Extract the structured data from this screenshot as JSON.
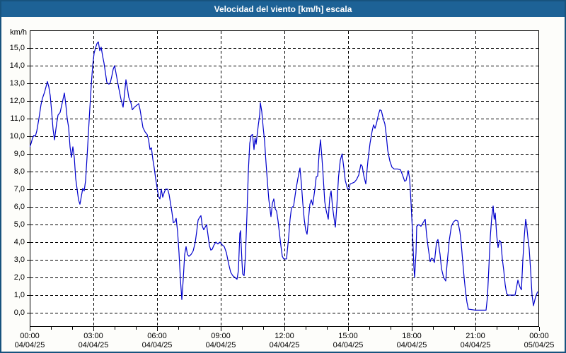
{
  "window": {
    "title": "Velocidad del viento [km/h] escala",
    "colors": {
      "titlebar_bg": "#1D6296",
      "titlebar_text": "#FFFFFF",
      "window_border": "#17537E",
      "window_bg": "#FDFDFA",
      "plot_bg": "#FFFFFF",
      "grid": "#000000",
      "axis": "#000000",
      "line": "#0000CC"
    }
  },
  "chart_data": {
    "type": "line",
    "title": "Velocidad del viento [km/h] escala",
    "ylabel": "km/h",
    "xlabel": "",
    "ylim": [
      0,
      15
    ],
    "xlim_hours": [
      0,
      24
    ],
    "grid": "dashed black, horizontal every 1 km/h, vertical every 3 h",
    "legend": "none",
    "y_tick_labels": [
      "0,0",
      "1,0",
      "2,0",
      "3,0",
      "4,0",
      "5,0",
      "6,0",
      "7,0",
      "8,0",
      "9,0",
      "10,0",
      "11,0",
      "12,0",
      "13,0",
      "14,0",
      "15,0"
    ],
    "x_ticks": [
      {
        "hour": 0,
        "time": "00:00",
        "date": "04/04/25"
      },
      {
        "hour": 3,
        "time": "03:00",
        "date": "04/04/25"
      },
      {
        "hour": 6,
        "time": "06:00",
        "date": "04/04/25"
      },
      {
        "hour": 9,
        "time": "09:00",
        "date": "04/04/25"
      },
      {
        "hour": 12,
        "time": "12:00",
        "date": "04/04/25"
      },
      {
        "hour": 15,
        "time": "15:00",
        "date": "04/04/25"
      },
      {
        "hour": 18,
        "time": "18:00",
        "date": "04/04/25"
      },
      {
        "hour": 21,
        "time": "21:00",
        "date": "04/04/25"
      },
      {
        "hour": 24,
        "time": "00:00",
        "date": "05/04/25"
      }
    ],
    "minor_x_tick_every_hours": 1,
    "series": [
      {
        "name": "Velocidad del viento",
        "unit": "km/h",
        "color": "#0000CC",
        "points_time_min_value_kmh": [
          [
            0,
            9.4
          ],
          [
            4,
            9.6
          ],
          [
            8,
            9.9
          ],
          [
            12,
            10.05
          ],
          [
            16,
            10.0
          ],
          [
            20,
            10.3
          ],
          [
            26,
            11.0
          ],
          [
            32,
            11.8
          ],
          [
            36,
            12.15
          ],
          [
            42,
            12.5
          ],
          [
            46,
            12.8
          ],
          [
            50,
            13.1
          ],
          [
            54,
            12.8
          ],
          [
            58,
            12.3
          ],
          [
            62,
            11.4
          ],
          [
            66,
            10.4
          ],
          [
            70,
            9.8
          ],
          [
            76,
            10.7
          ],
          [
            80,
            11.2
          ],
          [
            86,
            11.35
          ],
          [
            92,
            11.9
          ],
          [
            98,
            12.45
          ],
          [
            102,
            11.8
          ],
          [
            106,
            11.0
          ],
          [
            110,
            10.5
          ],
          [
            114,
            9.4
          ],
          [
            118,
            8.8
          ],
          [
            122,
            9.4
          ],
          [
            126,
            8.8
          ],
          [
            130,
            7.6
          ],
          [
            134,
            7.0
          ],
          [
            138,
            6.4
          ],
          [
            142,
            6.15
          ],
          [
            146,
            6.6
          ],
          [
            150,
            7.05
          ],
          [
            154,
            6.9
          ],
          [
            158,
            7.5
          ],
          [
            162,
            8.8
          ],
          [
            166,
            10.2
          ],
          [
            170,
            11.6
          ],
          [
            174,
            12.9
          ],
          [
            178,
            14.0
          ],
          [
            182,
            14.7
          ],
          [
            186,
            15.0
          ],
          [
            190,
            15.25
          ],
          [
            194,
            15.35
          ],
          [
            198,
            14.85
          ],
          [
            202,
            15.05
          ],
          [
            206,
            14.55
          ],
          [
            210,
            14.15
          ],
          [
            214,
            13.6
          ],
          [
            218,
            13.05
          ],
          [
            224,
            12.95
          ],
          [
            228,
            13.05
          ],
          [
            232,
            13.4
          ],
          [
            236,
            13.8
          ],
          [
            240,
            14.0
          ],
          [
            246,
            13.35
          ],
          [
            252,
            12.7
          ],
          [
            258,
            12.1
          ],
          [
            264,
            11.65
          ],
          [
            268,
            12.4
          ],
          [
            272,
            13.2
          ],
          [
            276,
            12.75
          ],
          [
            280,
            12.2
          ],
          [
            286,
            11.9
          ],
          [
            290,
            11.5
          ],
          [
            296,
            11.65
          ],
          [
            302,
            11.75
          ],
          [
            308,
            11.85
          ],
          [
            312,
            11.5
          ],
          [
            316,
            11.0
          ],
          [
            320,
            10.5
          ],
          [
            326,
            10.25
          ],
          [
            332,
            10.1
          ],
          [
            336,
            9.8
          ],
          [
            340,
            9.25
          ],
          [
            344,
            9.35
          ],
          [
            348,
            8.7
          ],
          [
            352,
            8.2
          ],
          [
            356,
            7.6
          ],
          [
            360,
            7.1
          ],
          [
            364,
            6.6
          ],
          [
            368,
            6.45
          ],
          [
            372,
            7.0
          ],
          [
            376,
            6.55
          ],
          [
            380,
            6.8
          ],
          [
            384,
            7.0
          ],
          [
            390,
            7.0
          ],
          [
            394,
            6.7
          ],
          [
            398,
            6.2
          ],
          [
            402,
            5.7
          ],
          [
            406,
            5.1
          ],
          [
            410,
            5.15
          ],
          [
            414,
            5.35
          ],
          [
            418,
            4.6
          ],
          [
            422,
            3.4
          ],
          [
            426,
            1.9
          ],
          [
            430,
            0.75
          ],
          [
            434,
            1.9
          ],
          [
            438,
            3.3
          ],
          [
            442,
            3.75
          ],
          [
            446,
            3.3
          ],
          [
            450,
            3.2
          ],
          [
            456,
            3.3
          ],
          [
            462,
            3.5
          ],
          [
            468,
            4.0
          ],
          [
            472,
            4.6
          ],
          [
            476,
            5.25
          ],
          [
            480,
            5.4
          ],
          [
            484,
            5.5
          ],
          [
            488,
            4.9
          ],
          [
            492,
            4.7
          ],
          [
            496,
            4.85
          ],
          [
            500,
            5.0
          ],
          [
            504,
            4.4
          ],
          [
            508,
            3.8
          ],
          [
            512,
            3.55
          ],
          [
            516,
            3.6
          ],
          [
            520,
            3.8
          ],
          [
            526,
            4.0
          ],
          [
            532,
            3.9
          ],
          [
            538,
            4.0
          ],
          [
            544,
            3.85
          ],
          [
            550,
            3.75
          ],
          [
            556,
            3.4
          ],
          [
            562,
            2.8
          ],
          [
            568,
            2.3
          ],
          [
            574,
            2.1
          ],
          [
            580,
            2.0
          ],
          [
            586,
            1.9
          ],
          [
            590,
            2.4
          ],
          [
            594,
            4.5
          ],
          [
            596,
            4.65
          ],
          [
            600,
            2.9
          ],
          [
            602,
            2.2
          ],
          [
            606,
            2.1
          ],
          [
            610,
            3.3
          ],
          [
            614,
            5.5
          ],
          [
            618,
            8.0
          ],
          [
            622,
            9.6
          ],
          [
            626,
            10.05
          ],
          [
            630,
            10.1
          ],
          [
            634,
            9.25
          ],
          [
            637,
            9.9
          ],
          [
            640,
            9.55
          ],
          [
            643,
            10.1
          ],
          [
            646,
            10.6
          ],
          [
            650,
            11.2
          ],
          [
            652,
            11.9
          ],
          [
            656,
            11.4
          ],
          [
            660,
            10.5
          ],
          [
            664,
            9.7
          ],
          [
            668,
            8.5
          ],
          [
            672,
            7.4
          ],
          [
            676,
            6.4
          ],
          [
            682,
            5.45
          ],
          [
            686,
            6.2
          ],
          [
            690,
            6.45
          ],
          [
            694,
            5.9
          ],
          [
            698,
            5.75
          ],
          [
            702,
            5.2
          ],
          [
            706,
            4.5
          ],
          [
            710,
            3.8
          ],
          [
            714,
            3.2
          ],
          [
            718,
            3.05
          ],
          [
            726,
            3.05
          ],
          [
            732,
            4.3
          ],
          [
            736,
            5.3
          ],
          [
            740,
            5.95
          ],
          [
            746,
            6.05
          ],
          [
            752,
            6.9
          ],
          [
            758,
            7.6
          ],
          [
            764,
            8.2
          ],
          [
            768,
            7.3
          ],
          [
            772,
            6.2
          ],
          [
            776,
            5.3
          ],
          [
            780,
            4.7
          ],
          [
            784,
            4.45
          ],
          [
            788,
            5.3
          ],
          [
            792,
            6.15
          ],
          [
            796,
            6.4
          ],
          [
            800,
            6.1
          ],
          [
            806,
            7.0
          ],
          [
            810,
            7.7
          ],
          [
            814,
            7.75
          ],
          [
            818,
            9.0
          ],
          [
            822,
            9.8
          ],
          [
            826,
            8.8
          ],
          [
            830,
            7.6
          ],
          [
            834,
            6.3
          ],
          [
            838,
            5.8
          ],
          [
            844,
            5.3
          ],
          [
            848,
            6.5
          ],
          [
            852,
            6.9
          ],
          [
            856,
            6.0
          ],
          [
            860,
            5.4
          ],
          [
            864,
            4.85
          ],
          [
            868,
            6.0
          ],
          [
            873,
            7.7
          ],
          [
            878,
            8.65
          ],
          [
            883,
            9.0
          ],
          [
            888,
            8.2
          ],
          [
            892,
            7.5
          ],
          [
            898,
            7.05
          ],
          [
            902,
            7.0
          ],
          [
            906,
            7.3
          ],
          [
            912,
            7.35
          ],
          [
            918,
            7.4
          ],
          [
            924,
            7.55
          ],
          [
            930,
            7.8
          ],
          [
            936,
            8.4
          ],
          [
            940,
            8.3
          ],
          [
            944,
            7.8
          ],
          [
            950,
            7.3
          ],
          [
            956,
            8.6
          ],
          [
            962,
            9.6
          ],
          [
            968,
            10.3
          ],
          [
            972,
            10.65
          ],
          [
            976,
            10.45
          ],
          [
            980,
            10.7
          ],
          [
            986,
            11.25
          ],
          [
            990,
            11.5
          ],
          [
            994,
            11.45
          ],
          [
            1000,
            10.95
          ],
          [
            1004,
            10.7
          ],
          [
            1008,
            10.05
          ],
          [
            1012,
            9.2
          ],
          [
            1018,
            8.6
          ],
          [
            1024,
            8.25
          ],
          [
            1030,
            8.15
          ],
          [
            1040,
            8.15
          ],
          [
            1048,
            8.1
          ],
          [
            1054,
            7.8
          ],
          [
            1060,
            7.45
          ],
          [
            1064,
            7.5
          ],
          [
            1070,
            8.05
          ],
          [
            1074,
            7.6
          ],
          [
            1078,
            6.2
          ],
          [
            1082,
            4.6
          ],
          [
            1086,
            2.6
          ],
          [
            1088,
            2.0
          ],
          [
            1092,
            3.4
          ],
          [
            1094,
            4.9
          ],
          [
            1100,
            5.0
          ],
          [
            1106,
            4.9
          ],
          [
            1112,
            5.1
          ],
          [
            1118,
            5.3
          ],
          [
            1122,
            4.4
          ],
          [
            1126,
            3.75
          ],
          [
            1132,
            2.9
          ],
          [
            1136,
            3.1
          ],
          [
            1140,
            3.05
          ],
          [
            1144,
            2.85
          ],
          [
            1150,
            4.0
          ],
          [
            1154,
            4.15
          ],
          [
            1160,
            3.3
          ],
          [
            1164,
            2.5
          ],
          [
            1170,
            2.0
          ],
          [
            1176,
            1.8
          ],
          [
            1180,
            2.8
          ],
          [
            1186,
            4.1
          ],
          [
            1192,
            4.9
          ],
          [
            1198,
            5.15
          ],
          [
            1204,
            5.25
          ],
          [
            1210,
            5.2
          ],
          [
            1216,
            4.6
          ],
          [
            1220,
            3.9
          ],
          [
            1224,
            2.9
          ],
          [
            1228,
            2.0
          ],
          [
            1232,
            1.2
          ],
          [
            1236,
            0.6
          ],
          [
            1240,
            0.2
          ],
          [
            1260,
            0.15
          ],
          [
            1290,
            0.15
          ],
          [
            1294,
            0.9
          ],
          [
            1298,
            2.6
          ],
          [
            1302,
            4.3
          ],
          [
            1306,
            5.4
          ],
          [
            1310,
            6.05
          ],
          [
            1313,
            5.3
          ],
          [
            1316,
            5.65
          ],
          [
            1320,
            4.4
          ],
          [
            1324,
            3.7
          ],
          [
            1328,
            4.1
          ],
          [
            1332,
            4.0
          ],
          [
            1336,
            3.05
          ],
          [
            1340,
            2.4
          ],
          [
            1344,
            1.6
          ],
          [
            1348,
            1.1
          ],
          [
            1352,
            1.0
          ],
          [
            1372,
            1.0
          ],
          [
            1380,
            1.85
          ],
          [
            1386,
            1.45
          ],
          [
            1390,
            1.3
          ],
          [
            1394,
            3.0
          ],
          [
            1398,
            4.3
          ],
          [
            1402,
            5.3
          ],
          [
            1405,
            4.9
          ],
          [
            1408,
            4.3
          ],
          [
            1412,
            3.6
          ],
          [
            1416,
            2.4
          ],
          [
            1420,
            1.0
          ],
          [
            1424,
            0.4
          ],
          [
            1430,
            0.9
          ],
          [
            1436,
            1.2
          ]
        ]
      }
    ]
  }
}
